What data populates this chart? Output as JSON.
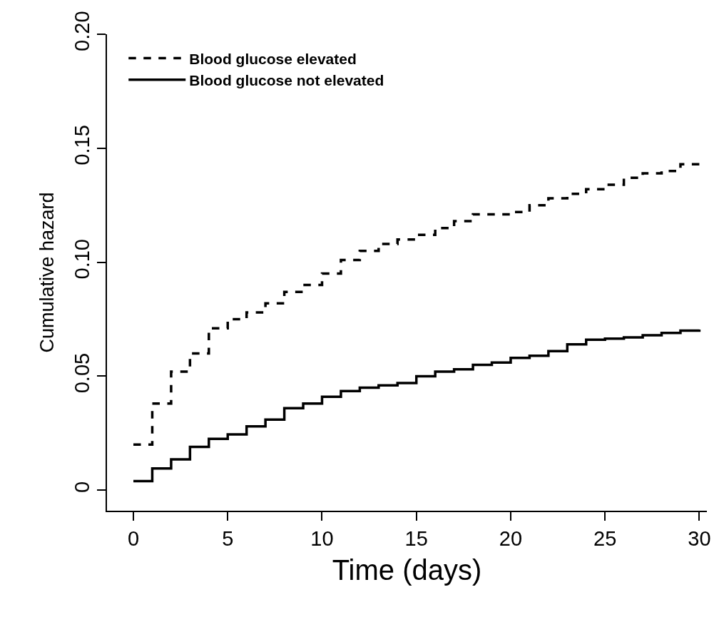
{
  "chart_data": {
    "type": "step",
    "xlabel": "Time (days)",
    "ylabel": "Cumulative hazard",
    "x": [
      0,
      1,
      2,
      3,
      4,
      5,
      6,
      7,
      8,
      9,
      10,
      11,
      12,
      13,
      14,
      15,
      16,
      17,
      18,
      19,
      20,
      21,
      22,
      23,
      24,
      25,
      26,
      27,
      28,
      29,
      30
    ],
    "series": [
      {
        "name": "Blood glucose elevated",
        "color": "#000000",
        "line_style": "dashed",
        "values": [
          0.02,
          0.038,
          0.052,
          0.06,
          0.071,
          0.075,
          0.078,
          0.082,
          0.087,
          0.09,
          0.095,
          0.101,
          0.105,
          0.108,
          0.11,
          0.112,
          0.115,
          0.118,
          0.121,
          0.121,
          0.122,
          0.125,
          0.128,
          0.13,
          0.132,
          0.134,
          0.137,
          0.139,
          0.14,
          0.143,
          0.145
        ]
      },
      {
        "name": "Blood glucose not elevated",
        "color": "#000000",
        "line_style": "solid",
        "values": [
          0.004,
          0.0095,
          0.0135,
          0.019,
          0.0225,
          0.0245,
          0.028,
          0.031,
          0.036,
          0.038,
          0.041,
          0.0435,
          0.045,
          0.046,
          0.047,
          0.05,
          0.052,
          0.053,
          0.055,
          0.056,
          0.058,
          0.059,
          0.061,
          0.064,
          0.066,
          0.0665,
          0.067,
          0.068,
          0.069,
          0.07,
          0.0705
        ]
      }
    ],
    "xlim": [
      -1.4,
      30.4
    ],
    "xticks": [
      0,
      5,
      10,
      15,
      20,
      25,
      30
    ],
    "ylim": [
      -0.009,
      0.2
    ],
    "yticks": [
      {
        "value": 0,
        "label": "0"
      },
      {
        "value": 0.05,
        "label": "0.05"
      },
      {
        "value": 0.1,
        "label": "0.10"
      },
      {
        "value": 0.15,
        "label": "0.15"
      },
      {
        "value": 0.2,
        "label": "0.20"
      }
    ],
    "legend": "top left"
  }
}
